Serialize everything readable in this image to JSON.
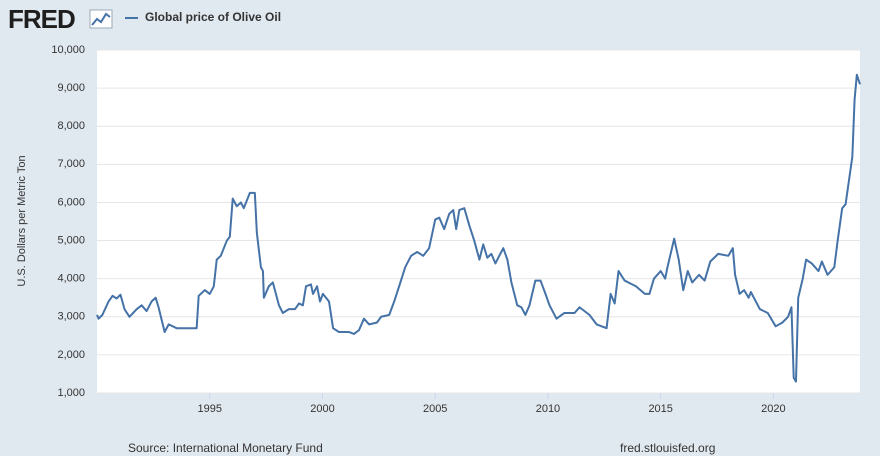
{
  "logo": "FRED",
  "chart_data": {
    "type": "line",
    "ylabel": "U.S. Dollars per Metric Ton",
    "source": "Source: International Monetary Fund",
    "site": "fred.stlouisfed.org",
    "xlim": [
      1990,
      2023.84
    ],
    "xticks": [
      1995,
      2000,
      2005,
      2010,
      2015,
      2020
    ],
    "ylim": [
      1000,
      10000
    ],
    "yticks": [
      {
        "value": 1000,
        "label": "1,000"
      },
      {
        "value": 2000,
        "label": "2,000"
      },
      {
        "value": 3000,
        "label": "3,000"
      },
      {
        "value": 4000,
        "label": "4,000"
      },
      {
        "value": 5000,
        "label": "5,000"
      },
      {
        "value": 6000,
        "label": "6,000"
      },
      {
        "value": 7000,
        "label": "7,000"
      },
      {
        "value": 8000,
        "label": "8,000"
      },
      {
        "value": 9000,
        "label": "9,000"
      },
      {
        "value": 10000,
        "label": "10,000"
      }
    ],
    "grid": true,
    "series": [
      {
        "name": "Global price of Olive Oil",
        "color": "#4572a7",
        "x": [
          1990.0,
          1990.07,
          1990.24,
          1990.51,
          1990.69,
          1990.87,
          1991.04,
          1991.22,
          1991.44,
          1991.76,
          1991.98,
          1992.2,
          1992.42,
          1992.6,
          1992.73,
          1993.0,
          1993.18,
          1993.53,
          1994.07,
          1994.42,
          1994.51,
          1994.78,
          1995.0,
          1995.18,
          1995.31,
          1995.49,
          1995.76,
          1995.89,
          1996.02,
          1996.2,
          1996.38,
          1996.51,
          1996.78,
          1997.0,
          1997.09,
          1997.27,
          1997.36,
          1997.4,
          1997.62,
          1997.8,
          1998.07,
          1998.24,
          1998.51,
          1998.78,
          1998.96,
          1999.13,
          1999.27,
          1999.49,
          1999.58,
          1999.76,
          1999.89,
          2000.02,
          2000.29,
          2000.47,
          2000.73,
          2001.18,
          2001.4,
          2001.62,
          2001.84,
          2002.07,
          2002.42,
          2002.6,
          2002.96,
          2003.18,
          2003.4,
          2003.67,
          2003.93,
          2004.2,
          2004.47,
          2004.73,
          2005.0,
          2005.18,
          2005.4,
          2005.62,
          2005.8,
          2005.93,
          2006.07,
          2006.29,
          2006.51,
          2006.73,
          2006.96,
          2007.13,
          2007.31,
          2007.49,
          2007.67,
          2007.84,
          2008.02,
          2008.2,
          2008.38,
          2008.64,
          2008.82,
          2009.0,
          2009.18,
          2009.44,
          2009.67,
          2009.89,
          2010.07,
          2010.38,
          2010.73,
          2011.18,
          2011.4,
          2011.84,
          2012.16,
          2012.6,
          2012.78,
          2012.96,
          2013.13,
          2013.4,
          2013.9,
          2014.3,
          2014.5,
          2014.7,
          2015.0,
          2015.2,
          2015.3,
          2015.6,
          2015.8,
          2016.0,
          2016.2,
          2016.4,
          2016.7,
          2016.95,
          2017.2,
          2017.55,
          2018.0,
          2018.2,
          2018.3,
          2018.5,
          2018.7,
          2018.9,
          2019.0,
          2019.4,
          2019.75,
          2020.1,
          2020.4,
          2020.65,
          2020.8,
          2020.9,
          2021.0,
          2021.1,
          2021.3,
          2021.45,
          2021.7,
          2022.0,
          2022.15,
          2022.4,
          2022.7,
          2022.85,
          2023.05,
          2023.2,
          2023.5,
          2023.6,
          2023.7,
          2023.84
        ],
        "values": [
          3050,
          2950,
          3050,
          3400,
          3550,
          3480,
          3580,
          3200,
          3000,
          3200,
          3300,
          3150,
          3400,
          3500,
          3250,
          2600,
          2800,
          2700,
          2700,
          2700,
          3550,
          3700,
          3600,
          3800,
          4500,
          4600,
          5000,
          5100,
          6100,
          5900,
          6000,
          5850,
          6250,
          6250,
          5200,
          4300,
          4200,
          3500,
          3800,
          3900,
          3300,
          3100,
          3200,
          3200,
          3350,
          3300,
          3800,
          3850,
          3600,
          3800,
          3400,
          3600,
          3400,
          2700,
          2600,
          2600,
          2550,
          2650,
          2950,
          2800,
          2850,
          3000,
          3050,
          3400,
          3800,
          4300,
          4600,
          4700,
          4600,
          4800,
          5550,
          5600,
          5300,
          5700,
          5800,
          5300,
          5800,
          5850,
          5400,
          5000,
          4500,
          4900,
          4550,
          4650,
          4400,
          4600,
          4800,
          4500,
          3900,
          3300,
          3250,
          3050,
          3300,
          3950,
          3950,
          3600,
          3300,
          2950,
          3100,
          3100,
          3250,
          3050,
          2800,
          2700,
          3600,
          3350,
          4200,
          3950,
          3800,
          3600,
          3600,
          4000,
          4200,
          4000,
          4300,
          5050,
          4500,
          3700,
          4200,
          3900,
          4100,
          3950,
          4450,
          4650,
          4600,
          4800,
          4100,
          3600,
          3700,
          3500,
          3650,
          3200,
          3100,
          2750,
          2850,
          3000,
          3250,
          1400,
          1300,
          3500,
          4000,
          4500,
          4400,
          4200,
          4450,
          4100,
          4300,
          5000,
          5850,
          5950,
          7200,
          8700,
          9350,
          9100
        ]
      }
    ]
  }
}
